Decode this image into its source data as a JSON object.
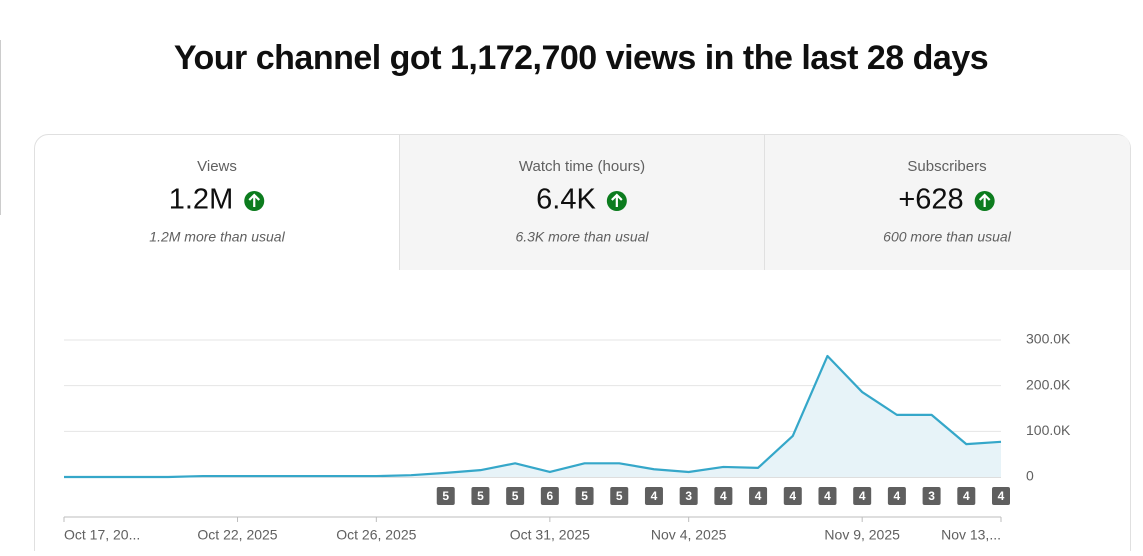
{
  "header": {
    "title": "Your channel got 1,172,700 views in the last 28 days"
  },
  "metrics": [
    {
      "label": "Views",
      "value": "1.2M",
      "note": "1.2M more than usual"
    },
    {
      "label": "Watch time (hours)",
      "value": "6.4K",
      "note": "6.3K more than usual"
    },
    {
      "label": "Subscribers",
      "value": "+628",
      "note": "600 more than usual"
    }
  ],
  "chart_data": {
    "type": "line",
    "categories": [
      "Oct 17, 20...",
      null,
      null,
      null,
      null,
      "Oct 22, 2025",
      null,
      null,
      null,
      "Oct 26, 2025",
      null,
      null,
      null,
      null,
      "Oct 31, 2025",
      null,
      null,
      null,
      "Nov 4, 2025",
      null,
      null,
      null,
      null,
      "Nov 9, 2025",
      null,
      null,
      null,
      "Nov 13,..."
    ],
    "series": [
      {
        "name": "Views",
        "color": "#35a7c9",
        "values": [
          0,
          0,
          0,
          0,
          2000,
          2000,
          2000,
          2000,
          2000,
          2000,
          4000,
          9000,
          15000,
          30000,
          11000,
          30000,
          30000,
          17000,
          11000,
          22000,
          20000,
          90000,
          265000,
          186000,
          136000,
          136000,
          72000,
          77000
        ]
      }
    ],
    "markers": [
      null,
      null,
      null,
      null,
      null,
      null,
      null,
      null,
      null,
      null,
      null,
      5,
      5,
      5,
      6,
      5,
      5,
      4,
      3,
      4,
      4,
      4,
      4,
      4,
      4,
      3,
      4,
      4
    ],
    "ylim": [
      0,
      300000
    ],
    "yticks": [
      0,
      {
        "value": 100000,
        "label": "100.0K"
      },
      {
        "value": 200000,
        "label": "200.0K"
      },
      {
        "value": 300000,
        "label": "300.0K"
      }
    ],
    "grid": true
  }
}
